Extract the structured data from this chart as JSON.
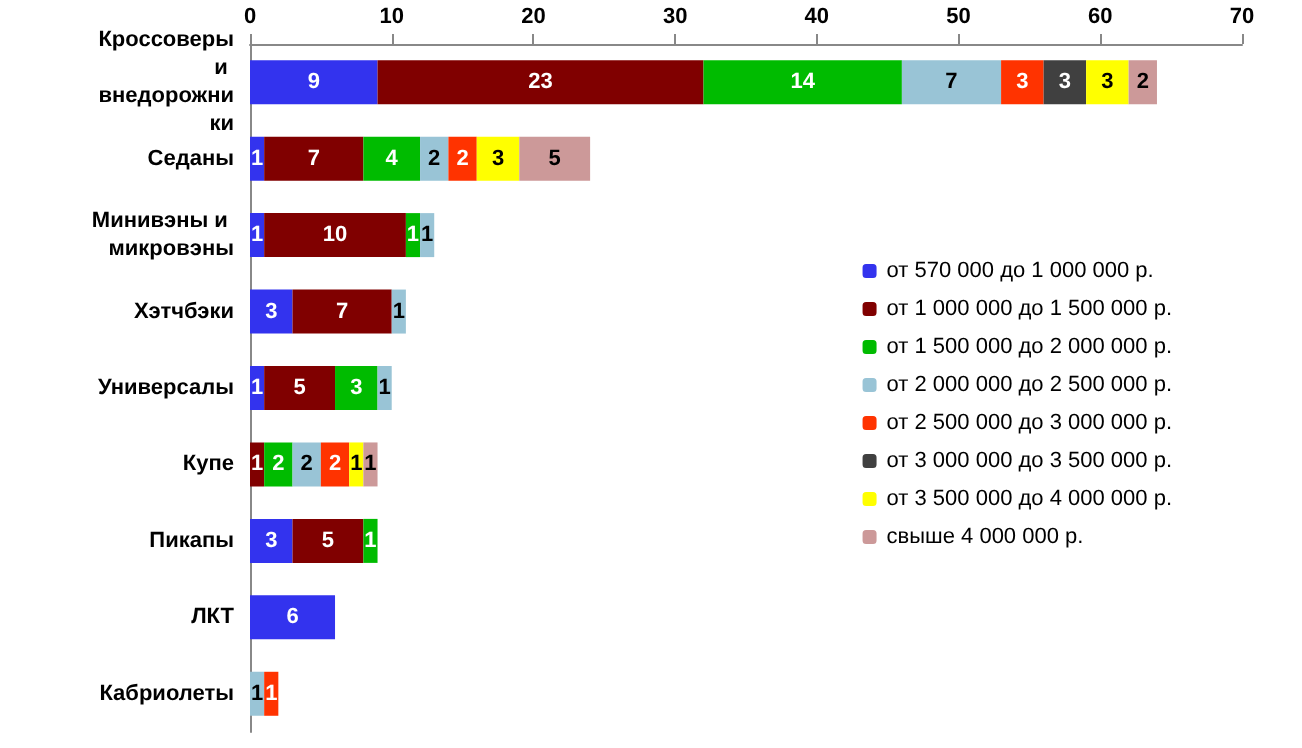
{
  "chart_data": {
    "type": "bar",
    "orientation": "horizontal",
    "stacked": true,
    "categories": [
      "Кроссоверы и внедорожники",
      "Седаны",
      "Минивэны и микровэны",
      "Хэтчбэки",
      "Универсалы",
      "Купе",
      "Пикапы",
      "ЛКТ",
      "Кабриолеты"
    ],
    "series": [
      {
        "name": "от 570 000 до 1 000 000 р.",
        "color": "#3333ee",
        "values": [
          9,
          1,
          1,
          3,
          1,
          null,
          3,
          6,
          null
        ]
      },
      {
        "name": "от 1 000 000 до 1 500 000 р.",
        "color": "#800000",
        "values": [
          23,
          7,
          10,
          7,
          5,
          1,
          5,
          null,
          null
        ]
      },
      {
        "name": "от 1 500 000 до 2 000 000 р.",
        "color": "#00bb00",
        "values": [
          14,
          4,
          1,
          null,
          3,
          2,
          1,
          null,
          null
        ]
      },
      {
        "name": "от 2 000 000 до 2 500 000 р.",
        "color": "#99c4d6",
        "values": [
          7,
          2,
          1,
          1,
          1,
          2,
          null,
          null,
          1
        ]
      },
      {
        "name": "от 2 500 000 до 3 000 000 р.",
        "color": "#ff3300",
        "values": [
          3,
          2,
          null,
          null,
          null,
          2,
          null,
          null,
          1
        ]
      },
      {
        "name": "от 3 000 000 до 3 500 000 р.",
        "color": "#404040",
        "values": [
          3,
          null,
          null,
          null,
          null,
          null,
          null,
          null,
          null
        ]
      },
      {
        "name": "от 3 500 000 до 4 000 000 р.",
        "color": "#ffff00",
        "values": [
          3,
          3,
          null,
          null,
          null,
          1,
          null,
          null,
          null
        ]
      },
      {
        "name": "свыше 4 000 000 р.",
        "color": "#cc9999",
        "values": [
          2,
          5,
          null,
          null,
          null,
          1,
          null,
          null,
          null
        ]
      }
    ],
    "xlim": [
      0,
      70
    ],
    "xticks": [
      0,
      10,
      20,
      30,
      40,
      50,
      60,
      70
    ],
    "grid": false,
    "legend": "right",
    "data_labels": true
  }
}
